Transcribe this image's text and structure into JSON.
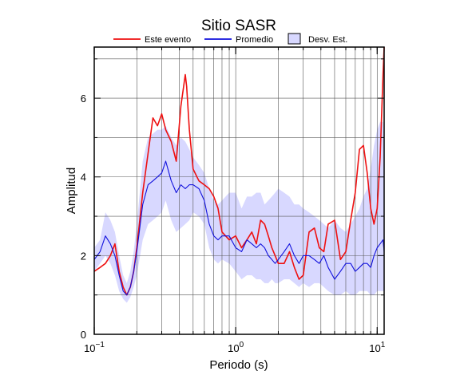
{
  "chart_data": {
    "type": "line",
    "title": "Sitio SASR",
    "xlabel": "Periodo (s)",
    "ylabel": "Amplitud",
    "x_scale": "log",
    "xlim": [
      0.1,
      11.2
    ],
    "ylim": [
      0,
      7.3
    ],
    "grid": true,
    "legend_position": "top",
    "x_ticks": [
      {
        "value": 0.1,
        "base": "10",
        "exp": "−1"
      },
      {
        "value": 1,
        "base": "10",
        "exp": "0"
      },
      {
        "value": 10,
        "base": "10",
        "exp": "1"
      }
    ],
    "y_ticks": [
      0,
      2,
      4,
      6
    ],
    "legend": [
      {
        "label": "Este evento",
        "type": "line",
        "color": "#ee1111"
      },
      {
        "label": "Promedio",
        "type": "line",
        "color": "#1111dd"
      },
      {
        "label": "Desv. Est.",
        "type": "box",
        "color": "#d8d8ff"
      }
    ],
    "series": [
      {
        "name": "Este evento",
        "color": "#ee1111",
        "x": [
          0.1,
          0.11,
          0.12,
          0.13,
          0.14,
          0.15,
          0.16,
          0.17,
          0.18,
          0.19,
          0.2,
          0.22,
          0.24,
          0.26,
          0.28,
          0.3,
          0.32,
          0.35,
          0.38,
          0.41,
          0.44,
          0.45,
          0.47,
          0.5,
          0.55,
          0.6,
          0.65,
          0.7,
          0.75,
          0.8,
          0.9,
          1.0,
          1.1,
          1.2,
          1.3,
          1.4,
          1.5,
          1.6,
          1.7,
          1.8,
          1.9,
          2.0,
          2.2,
          2.4,
          2.6,
          2.8,
          3.0,
          3.3,
          3.6,
          3.9,
          4.2,
          4.5,
          5.0,
          5.5,
          6.0,
          6.5,
          7.0,
          7.5,
          8.0,
          8.5,
          9.0,
          9.5,
          10.0,
          10.5,
          11.0,
          11.2
        ],
        "y": [
          1.6,
          1.7,
          1.8,
          2.0,
          2.3,
          1.6,
          1.2,
          1.0,
          1.2,
          1.6,
          2.2,
          3.6,
          4.6,
          5.5,
          5.3,
          5.6,
          5.2,
          4.9,
          4.4,
          5.8,
          6.6,
          6.3,
          5.2,
          4.2,
          3.9,
          3.8,
          3.7,
          3.5,
          3.2,
          2.6,
          2.4,
          2.5,
          2.2,
          2.4,
          2.6,
          2.3,
          2.9,
          2.8,
          2.5,
          2.2,
          2.0,
          1.8,
          1.8,
          2.1,
          1.7,
          1.4,
          1.5,
          2.6,
          2.7,
          2.2,
          2.1,
          2.8,
          2.9,
          1.9,
          2.1,
          2.9,
          3.6,
          4.7,
          4.8,
          4.1,
          3.2,
          2.8,
          3.2,
          4.5,
          6.6,
          7.3
        ]
      },
      {
        "name": "Promedio",
        "color": "#1111dd",
        "x": [
          0.1,
          0.11,
          0.12,
          0.13,
          0.14,
          0.15,
          0.16,
          0.17,
          0.18,
          0.19,
          0.2,
          0.22,
          0.24,
          0.26,
          0.28,
          0.3,
          0.32,
          0.35,
          0.38,
          0.41,
          0.44,
          0.47,
          0.5,
          0.55,
          0.6,
          0.65,
          0.7,
          0.75,
          0.8,
          0.9,
          1.0,
          1.1,
          1.2,
          1.3,
          1.4,
          1.5,
          1.6,
          1.7,
          1.8,
          1.9,
          2.0,
          2.2,
          2.4,
          2.6,
          2.8,
          3.0,
          3.3,
          3.6,
          3.9,
          4.2,
          4.5,
          5.0,
          5.5,
          6.0,
          6.5,
          7.0,
          7.5,
          8.0,
          8.5,
          9.0,
          9.5,
          10.0,
          10.5,
          11.0,
          11.2
        ],
        "y": [
          1.9,
          2.1,
          2.5,
          2.3,
          2.0,
          1.5,
          1.1,
          1.0,
          1.2,
          1.6,
          2.1,
          3.3,
          3.8,
          3.9,
          4.0,
          4.1,
          4.4,
          3.9,
          3.6,
          3.8,
          3.7,
          3.8,
          3.8,
          3.7,
          3.4,
          2.8,
          2.5,
          2.4,
          2.5,
          2.5,
          2.2,
          2.1,
          2.4,
          2.3,
          2.2,
          2.3,
          2.2,
          2.0,
          1.9,
          1.8,
          1.9,
          2.1,
          2.3,
          2.0,
          1.8,
          2.0,
          2.0,
          1.9,
          1.8,
          2.0,
          1.7,
          1.4,
          1.6,
          1.8,
          1.8,
          1.6,
          1.7,
          1.8,
          1.8,
          1.7,
          2.0,
          2.2,
          2.3,
          2.4,
          2.1
        ]
      },
      {
        "name": "Desv. Est.",
        "color": "#d8d8ff",
        "type": "band",
        "x": [
          0.1,
          0.11,
          0.12,
          0.13,
          0.14,
          0.15,
          0.16,
          0.17,
          0.18,
          0.19,
          0.2,
          0.22,
          0.24,
          0.26,
          0.28,
          0.3,
          0.32,
          0.35,
          0.38,
          0.41,
          0.44,
          0.47,
          0.5,
          0.55,
          0.6,
          0.65,
          0.7,
          0.75,
          0.8,
          0.9,
          1.0,
          1.1,
          1.2,
          1.3,
          1.4,
          1.5,
          1.6,
          1.7,
          1.8,
          1.9,
          2.0,
          2.2,
          2.4,
          2.6,
          2.8,
          3.0,
          3.3,
          3.6,
          3.9,
          4.2,
          4.5,
          5.0,
          5.5,
          6.0,
          6.5,
          7.0,
          7.5,
          8.0,
          8.5,
          9.0,
          9.5,
          10.0,
          10.5,
          11.0,
          11.2
        ],
        "upper": [
          2.2,
          2.4,
          3.1,
          2.9,
          2.6,
          2.0,
          1.5,
          1.3,
          1.6,
          2.1,
          2.8,
          4.4,
          5.0,
          5.1,
          5.2,
          5.2,
          5.3,
          5.0,
          4.8,
          5.0,
          4.9,
          4.7,
          4.5,
          4.3,
          4.1,
          3.7,
          3.4,
          3.3,
          3.4,
          3.6,
          3.6,
          3.2,
          3.5,
          3.5,
          3.6,
          3.6,
          3.3,
          3.4,
          3.5,
          3.6,
          3.7,
          3.6,
          3.5,
          3.3,
          3.3,
          3.2,
          3.1,
          3.0,
          2.9,
          2.8,
          2.7,
          2.9,
          2.7,
          2.6,
          2.8,
          3.0,
          3.2,
          3.5,
          3.7,
          4.2,
          4.8,
          5.2,
          5.4,
          5.4,
          5.0
        ],
        "lower": [
          1.6,
          1.8,
          2.0,
          1.8,
          1.5,
          1.1,
          0.9,
          0.8,
          0.95,
          1.2,
          1.5,
          2.4,
          2.8,
          2.9,
          3.0,
          3.1,
          3.4,
          2.9,
          2.6,
          2.7,
          2.8,
          2.9,
          3.1,
          3.0,
          2.8,
          2.2,
          1.9,
          1.8,
          1.9,
          1.8,
          1.6,
          1.4,
          1.5,
          1.5,
          1.4,
          1.4,
          1.3,
          1.3,
          1.4,
          1.3,
          1.3,
          1.4,
          1.4,
          1.3,
          1.2,
          1.3,
          1.2,
          1.3,
          1.3,
          1.2,
          1.1,
          1.0,
          1.0,
          1.1,
          1.0,
          1.0,
          1.1,
          1.1,
          1.1,
          1.0,
          1.0,
          1.1,
          1.1,
          1.1,
          1.1
        ]
      }
    ]
  }
}
